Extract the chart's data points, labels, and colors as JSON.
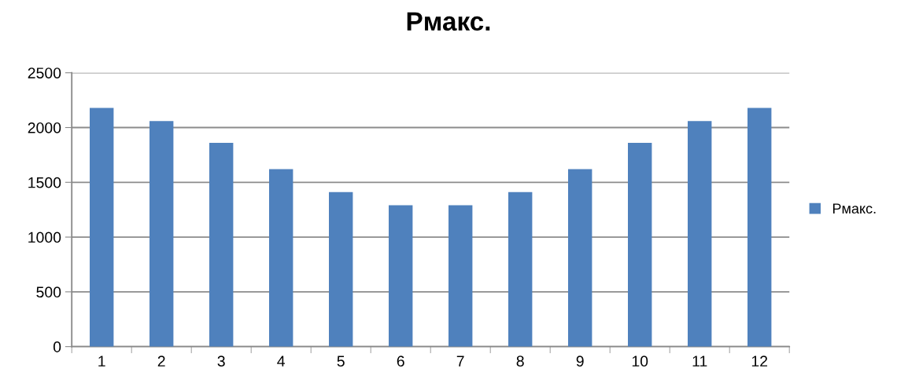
{
  "chart_data": {
    "type": "bar",
    "title": "Pмакс.",
    "categories": [
      "1",
      "2",
      "3",
      "4",
      "5",
      "6",
      "7",
      "8",
      "9",
      "10",
      "11",
      "12"
    ],
    "series": [
      {
        "name": "Pмакс.",
        "color": "#4f81bd",
        "values": [
          2180,
          2060,
          1860,
          1620,
          1410,
          1290,
          1290,
          1410,
          1620,
          1860,
          2060,
          2180
        ]
      }
    ],
    "ylim": [
      0,
      2500
    ],
    "yticks": [
      0,
      500,
      1000,
      1500,
      2000,
      2500
    ],
    "grid": "y",
    "legend": "right"
  }
}
